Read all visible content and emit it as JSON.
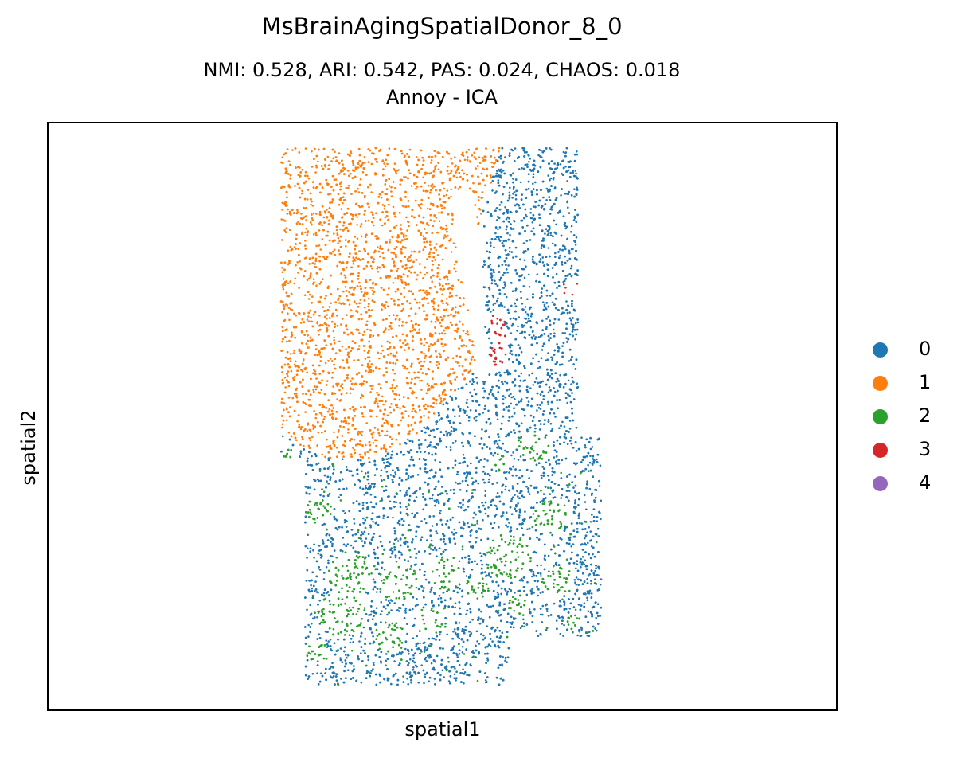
{
  "chart_data": {
    "type": "scatter",
    "title": "MsBrainAgingSpatialDonor_8_0",
    "subtitle_line1": "NMI: 0.528,  ARI: 0.542,  PAS: 0.024,  CHAOS: 0.018",
    "subtitle_line2": "Annoy - ICA",
    "xlabel": "spatial1",
    "ylabel": "spatial2",
    "grid": false,
    "legend_position": "right",
    "series": [
      {
        "name": "0",
        "color": "#1f77b4"
      },
      {
        "name": "1",
        "color": "#ff7f0e"
      },
      {
        "name": "2",
        "color": "#2ca02c"
      },
      {
        "name": "3",
        "color": "#d62728"
      },
      {
        "name": "4",
        "color": "#9467bd"
      }
    ]
  }
}
